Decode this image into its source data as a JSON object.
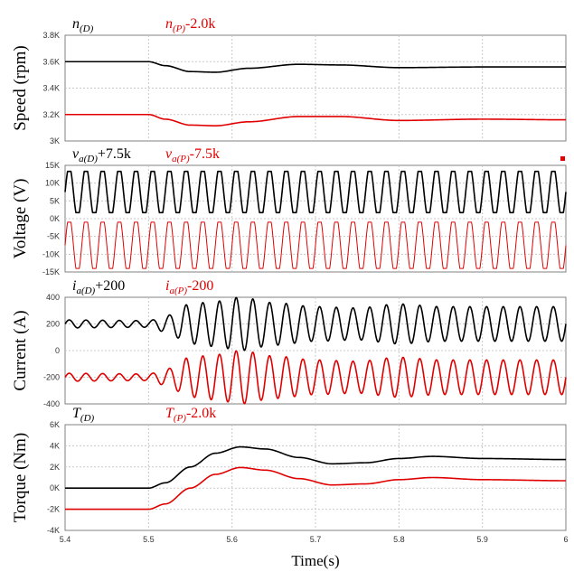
{
  "chart_data": [
    {
      "type": "line",
      "ylabel": "Speed (rpm)",
      "ylim": [
        3000,
        3800
      ],
      "yticks": [
        3000,
        3200,
        3400,
        3600,
        3800
      ],
      "ytick_labels": [
        "3K",
        "3.2K",
        "3.4K",
        "3.6K",
        "3.8K"
      ],
      "grid": true,
      "annotations": [
        {
          "base": "n",
          "sub": "(D)",
          "suffix": "",
          "color": "#000000"
        },
        {
          "base": "n",
          "sub": "(P)",
          "suffix": "-2.0k",
          "color": "#e00000"
        }
      ],
      "series": [
        {
          "x": [
            5.4,
            5.5,
            5.52,
            5.55,
            5.58,
            5.62,
            5.68,
            5.73,
            5.8,
            5.9,
            6.0
          ],
          "y": [
            3600,
            3600,
            3570,
            3525,
            3520,
            3550,
            3580,
            3575,
            3555,
            3560,
            3560
          ],
          "color": "#000000"
        },
        {
          "x": [
            5.4,
            5.5,
            5.52,
            5.55,
            5.58,
            5.62,
            5.68,
            5.73,
            5.8,
            5.9,
            6.0
          ],
          "y": [
            3200,
            3200,
            3165,
            3120,
            3115,
            3145,
            3185,
            3185,
            3155,
            3165,
            3160
          ],
          "color": "#e00000"
        }
      ]
    },
    {
      "type": "line",
      "ylabel": "Voltage (V)",
      "ylim": [
        -15000,
        15000
      ],
      "yticks": [
        -15000,
        -10000,
        -5000,
        0,
        5000,
        10000,
        15000
      ],
      "ytick_labels": [
        "-15K",
        "-10K",
        "-5K",
        "0K",
        "5K",
        "10K",
        "15K"
      ],
      "grid": true,
      "annotations": [
        {
          "base": "v",
          "sub": "a(D)",
          "suffix": "+7.5k",
          "color": "#000000"
        },
        {
          "base": "v",
          "sub": "a(P)",
          "suffix": "-7.5k",
          "color": "#e00000"
        }
      ],
      "series": [
        {
          "kind": "sine",
          "offset": 7500,
          "amplitude": 5800,
          "cycles": 30,
          "color": "#000000"
        },
        {
          "kind": "sine",
          "offset": -7500,
          "amplitude": 6500,
          "cycles": 30,
          "color": "#e00000"
        }
      ]
    },
    {
      "type": "line",
      "ylabel": "Current (A)",
      "ylim": [
        -400,
        400
      ],
      "yticks": [
        -400,
        -200,
        0,
        200,
        400
      ],
      "ytick_labels": [
        "-400",
        "-200",
        "0",
        "200",
        "400"
      ],
      "grid": true,
      "annotations": [
        {
          "base": "i",
          "sub": "a(D)",
          "suffix": "+200",
          "color": "#000000"
        },
        {
          "base": "i",
          "sub": "a(P)",
          "suffix": "-200",
          "color": "#e00000"
        }
      ],
      "series": [
        {
          "kind": "modsine",
          "offset": 200,
          "cycles": 30,
          "envelope_x": [
            5.4,
            5.5,
            5.52,
            5.55,
            5.58,
            5.61,
            5.65,
            5.7,
            5.75,
            5.8,
            5.85,
            6.0
          ],
          "envelope_a": [
            30,
            25,
            60,
            150,
            170,
            200,
            160,
            130,
            120,
            150,
            130,
            130
          ],
          "color": "#000000"
        },
        {
          "kind": "modsine",
          "offset": -200,
          "cycles": 30,
          "envelope_x": [
            5.4,
            5.5,
            5.52,
            5.55,
            5.58,
            5.61,
            5.65,
            5.7,
            5.75,
            5.8,
            5.85,
            6.0
          ],
          "envelope_a": [
            30,
            25,
            60,
            150,
            170,
            200,
            160,
            130,
            120,
            150,
            130,
            130
          ],
          "color": "#e00000"
        }
      ]
    },
    {
      "type": "line",
      "xlabel": "Time(s)",
      "ylabel": "Torque (Nm)",
      "ylim": [
        -4000,
        6000
      ],
      "yticks": [
        -4000,
        -2000,
        0,
        2000,
        4000,
        6000
      ],
      "ytick_labels": [
        "-4K",
        "-2K",
        "0K",
        "2K",
        "4K",
        "6K"
      ],
      "xlim": [
        5.4,
        6.0
      ],
      "xticks": [
        "5.4",
        "5.5",
        "5.6",
        "5.7",
        "5.8",
        "5.9",
        "6"
      ],
      "grid": true,
      "annotations": [
        {
          "base": "T",
          "sub": "(D)",
          "suffix": "",
          "color": "#000000"
        },
        {
          "base": "T",
          "sub": "(P)",
          "suffix": "-2.0k",
          "color": "#e00000"
        }
      ],
      "series": [
        {
          "x": [
            5.4,
            5.5,
            5.52,
            5.55,
            5.58,
            5.61,
            5.64,
            5.68,
            5.72,
            5.76,
            5.8,
            5.84,
            5.9,
            6.0
          ],
          "y": [
            0,
            0,
            500,
            2000,
            3300,
            3900,
            3700,
            2900,
            2300,
            2400,
            2800,
            3000,
            2800,
            2700
          ],
          "color": "#000000"
        },
        {
          "x": [
            5.4,
            5.5,
            5.52,
            5.55,
            5.58,
            5.61,
            5.64,
            5.68,
            5.72,
            5.76,
            5.8,
            5.84,
            5.9,
            6.0
          ],
          "y": [
            -2000,
            -2000,
            -1500,
            0,
            1300,
            1950,
            1700,
            900,
            300,
            400,
            800,
            1000,
            800,
            700
          ],
          "color": "#e00000"
        }
      ]
    }
  ]
}
